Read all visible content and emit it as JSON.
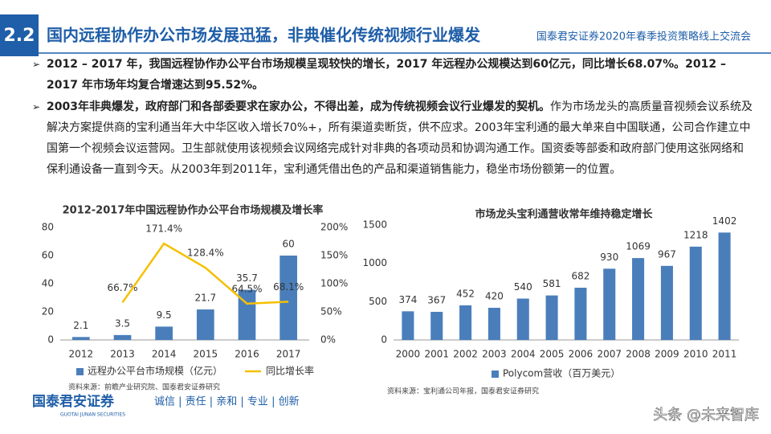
{
  "header": {
    "section": "2.2",
    "title": "国内远程协作办公市场发展迅猛，非典催化传统视频行业爆发",
    "event": "国泰君安证券2020年春季投资策略线上交流会"
  },
  "bullets": [
    {
      "bold": "2012 – 2017 年，我国远程协作办公平台市场规模呈现较快的增长，2017 年远程办公规模达到60亿元，同比增长68.07%。2012 – 2017 年市场年均复合增速达到95.52%。"
    },
    {
      "bold": "2003年非典爆发，政府部门和各部委要求在家办公，不得出差，成为传统视频会议行业爆发的契机。",
      "text": "作为市场龙头的高质量音视频会议系统及解决方案提供商的宝利通当年大中华区收入增长70%+，所有渠道卖断货，供不应求。2003年宝利通的最大单来自中国联通，公司合作建立中国第一个视频会议运营网。卫生部就使用该视频会议网络完成针对非典的各项动员和协调沟通工作。国资委等部委和政府部门使用这张网络和保利通设备一直到今天。从2003年到2011年，宝利通凭借出色的产品和渠道销售能力，稳坐市场份额第一的位置。"
    }
  ],
  "chart_data": [
    {
      "type": "bar",
      "title": "2012-2017年中国远程协作办公平台市场规模及增长率",
      "categories": [
        "2012",
        "2013",
        "2014",
        "2015",
        "2016",
        "2017"
      ],
      "series": [
        {
          "name": "远程办公平台市场规模（亿元）",
          "type": "bar",
          "color": "#4a7ebb",
          "values": [
            2.1,
            3.5,
            9.5,
            21.7,
            35.7,
            60
          ]
        },
        {
          "name": "同比增长率",
          "type": "line",
          "axis": "y2",
          "color": "#f5c000",
          "values": [
            null,
            66.7,
            171.4,
            128.4,
            64.5,
            68.1
          ],
          "value_labels": [
            null,
            "66.7%",
            "171.4%",
            "128.4%",
            "64.5%",
            "68.1%"
          ]
        }
      ],
      "ylim": [
        0,
        80
      ],
      "yticks": [
        0,
        20,
        40,
        60,
        80
      ],
      "y2lim": [
        0,
        200
      ],
      "y2ticks": [
        {
          "value": 0,
          "label": "0%"
        },
        {
          "value": 50,
          "label": "50%"
        },
        {
          "value": 100,
          "label": "100%"
        },
        {
          "value": 150,
          "label": "150%"
        },
        {
          "value": 200,
          "label": "200%"
        }
      ],
      "grid": false,
      "legend": "bottom",
      "source": "资料来源：前瞻产业研究院、国泰君安证券研究"
    },
    {
      "type": "bar",
      "title": "市场龙头宝利通营收常年维持稳定增长",
      "categories": [
        "2000",
        "2001",
        "2002",
        "2003",
        "2004",
        "2005",
        "2006",
        "2007",
        "2008",
        "2009",
        "2010",
        "2011"
      ],
      "series": [
        {
          "name": "Polycom营收（百万美元）",
          "type": "bar",
          "color": "#4a7ebb",
          "values": [
            374,
            367,
            452,
            420,
            540,
            581,
            682,
            930,
            1069,
            967,
            1218,
            1402
          ]
        }
      ],
      "ylim": [
        0,
        1500
      ],
      "yticks": [
        0,
        500,
        1000,
        1500
      ],
      "grid": false,
      "legend": "bottom",
      "source": "资料来源：宝利通公司年报，国泰君安证券研究"
    }
  ],
  "footer": {
    "logo": "国泰君安证券",
    "logo_en": "GUOTAI JUNAN SECURITIES",
    "slogan": "诚信 | 责任 | 亲和 | 专业 | 创新",
    "watermark": "头条 @未来智库"
  }
}
